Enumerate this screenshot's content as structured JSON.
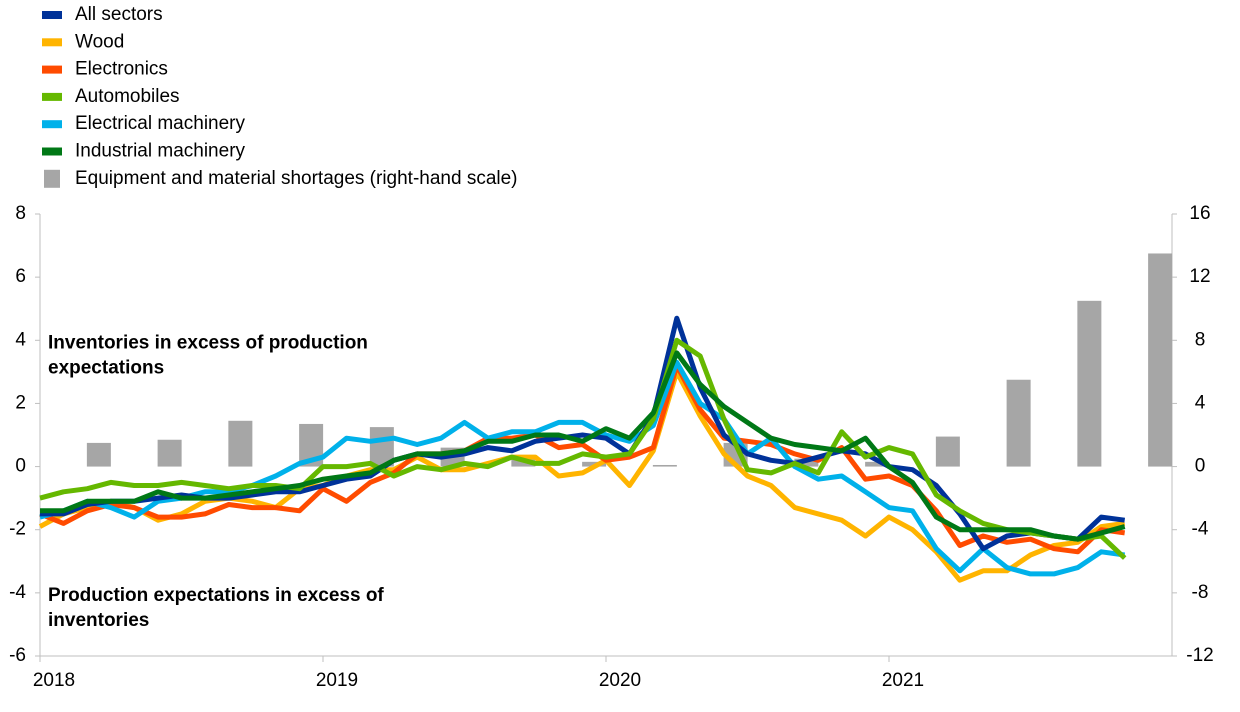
{
  "chart_data": {
    "type": "combo",
    "x": [
      2018,
      2018.083,
      2018.167,
      2018.25,
      2018.333,
      2018.417,
      2018.5,
      2018.583,
      2018.667,
      2018.75,
      2018.833,
      2018.917,
      2019,
      2019.083,
      2019.167,
      2019.25,
      2019.333,
      2019.417,
      2019.5,
      2019.583,
      2019.667,
      2019.75,
      2019.833,
      2019.917,
      2020,
      2020.083,
      2020.167,
      2020.25,
      2020.333,
      2020.417,
      2020.5,
      2020.583,
      2020.667,
      2020.75,
      2020.833,
      2020.917,
      2021,
      2021.083,
      2021.167,
      2021.25,
      2021.333,
      2021.417,
      2021.5,
      2021.583,
      2021.667,
      2021.75,
      2021.833
    ],
    "xlim": [
      2018,
      2022
    ],
    "xticks": [
      2018,
      2019,
      2020,
      2021
    ],
    "ylim": [
      -6,
      8
    ],
    "yticks": [
      -6,
      -4,
      -2,
      0,
      2,
      4,
      6,
      8
    ],
    "y2lim": [
      -12,
      16
    ],
    "y2ticks": [
      -12,
      -8,
      -4,
      0,
      4,
      8,
      12,
      16
    ],
    "grid": false,
    "legend": "top-left",
    "annotations": [
      {
        "lines": [
          "Inventories in excess of production",
          "expectations"
        ],
        "y": 3.9
      },
      {
        "lines": [
          "Production expectations in excess of",
          "inventories"
        ],
        "y": -4.1
      }
    ],
    "series": [
      {
        "name": "Equipment and material shortages (right-hand scale)",
        "type": "bar",
        "axis": "y2",
        "color": "#a6a6a6",
        "x": [
          2018.208,
          2018.458,
          2018.708,
          2018.958,
          2019.208,
          2019.458,
          2019.708,
          2019.958,
          2020.208,
          2020.458,
          2020.708,
          2020.958,
          2021.208,
          2021.458,
          2021.708,
          2021.958
        ],
        "values": [
          1.5,
          1.7,
          2.9,
          2.7,
          2.5,
          1.2,
          0.6,
          0.3,
          0.1,
          1.5,
          0.5,
          0.3,
          1.9,
          5.5,
          10.5,
          13.5
        ]
      },
      {
        "name": "Wood",
        "type": "line",
        "color": "#ffb400",
        "values": [
          -1.9,
          -1.5,
          -1.3,
          -1.1,
          -1.3,
          -1.7,
          -1.5,
          -1.1,
          -1.0,
          -1.1,
          -1.3,
          -0.7,
          -0.6,
          -0.3,
          -0.1,
          -0.1,
          0.3,
          -0.1,
          -0.1,
          0.1,
          0.3,
          0.3,
          -0.3,
          -0.2,
          0.2,
          -0.6,
          0.5,
          3.0,
          1.6,
          0.4,
          -0.3,
          -0.6,
          -1.3,
          -1.5,
          -1.7,
          -2.2,
          -1.6,
          -2.0,
          -2.7,
          -3.6,
          -3.3,
          -3.3,
          -2.8,
          -2.5,
          -2.4,
          -1.9,
          -1.8
        ]
      },
      {
        "name": "Electronics",
        "type": "line",
        "color": "#ff4b00",
        "values": [
          -1.5,
          -1.8,
          -1.4,
          -1.2,
          -1.3,
          -1.6,
          -1.6,
          -1.5,
          -1.2,
          -1.3,
          -1.3,
          -1.4,
          -0.7,
          -1.1,
          -0.5,
          -0.2,
          0.4,
          0.4,
          0.5,
          0.9,
          0.9,
          1.0,
          0.6,
          0.7,
          0.2,
          0.3,
          0.6,
          3.2,
          1.8,
          0.9,
          0.8,
          0.7,
          0.4,
          0.2,
          0.6,
          -0.4,
          -0.3,
          -0.6,
          -1.4,
          -2.5,
          -2.2,
          -2.4,
          -2.3,
          -2.6,
          -2.7,
          -2.0,
          -2.1
        ]
      },
      {
        "name": "Electrical machinery",
        "type": "line",
        "color": "#00b1ea",
        "values": [
          -1.6,
          -1.4,
          -1.1,
          -1.3,
          -1.6,
          -1.1,
          -1.0,
          -0.8,
          -0.8,
          -0.6,
          -0.3,
          0.1,
          0.3,
          0.9,
          0.8,
          0.9,
          0.7,
          0.9,
          1.4,
          0.9,
          1.1,
          1.1,
          1.4,
          1.4,
          1.0,
          0.8,
          1.3,
          3.3,
          2.0,
          1.5,
          0.4,
          0.9,
          0.0,
          -0.4,
          -0.3,
          -0.8,
          -1.3,
          -1.4,
          -2.6,
          -3.3,
          -2.6,
          -3.2,
          -3.4,
          -3.4,
          -3.2,
          -2.7,
          -2.8
        ]
      },
      {
        "name": "All sectors",
        "type": "line",
        "color": "#003299",
        "values": [
          -1.5,
          -1.5,
          -1.2,
          -1.1,
          -1.1,
          -1.0,
          -0.9,
          -1.0,
          -1.0,
          -0.9,
          -0.8,
          -0.8,
          -0.6,
          -0.4,
          -0.3,
          0.2,
          0.4,
          0.3,
          0.4,
          0.6,
          0.5,
          0.8,
          0.9,
          1.0,
          0.9,
          0.4,
          1.6,
          4.7,
          2.5,
          1.0,
          0.4,
          0.2,
          0.1,
          0.3,
          0.5,
          0.4,
          0.0,
          -0.1,
          -0.6,
          -1.5,
          -2.6,
          -2.2,
          -2.1,
          -2.2,
          -2.3,
          -1.6,
          -1.7
        ]
      },
      {
        "name": "Automobiles",
        "type": "line",
        "color": "#65b800",
        "values": [
          -1.0,
          -0.8,
          -0.7,
          -0.5,
          -0.6,
          -0.6,
          -0.5,
          -0.6,
          -0.7,
          -0.6,
          -0.6,
          -0.7,
          0.0,
          0.0,
          0.1,
          -0.3,
          0.0,
          -0.1,
          0.1,
          0.0,
          0.3,
          0.1,
          0.1,
          0.4,
          0.3,
          0.4,
          1.5,
          4.0,
          3.5,
          1.5,
          -0.1,
          -0.2,
          0.1,
          -0.2,
          1.1,
          0.3,
          0.6,
          0.4,
          -0.9,
          -1.4,
          -1.8,
          -2.0,
          -2.1,
          -2.2,
          -2.3,
          -2.2,
          -2.9
        ]
      },
      {
        "name": "Industrial machinery",
        "type": "line",
        "color": "#007816",
        "values": [
          -1.4,
          -1.4,
          -1.1,
          -1.1,
          -1.1,
          -0.8,
          -1.0,
          -1.0,
          -0.9,
          -0.8,
          -0.7,
          -0.6,
          -0.4,
          -0.3,
          -0.2,
          0.2,
          0.4,
          0.4,
          0.5,
          0.8,
          0.8,
          1.0,
          1.0,
          0.8,
          1.2,
          0.9,
          1.7,
          3.6,
          2.6,
          1.9,
          1.4,
          0.9,
          0.7,
          0.6,
          0.5,
          0.9,
          0.0,
          -0.5,
          -1.6,
          -2.0,
          -2.0,
          -2.0,
          -2.0,
          -2.2,
          -2.3,
          -2.1,
          -1.9
        ]
      }
    ]
  }
}
